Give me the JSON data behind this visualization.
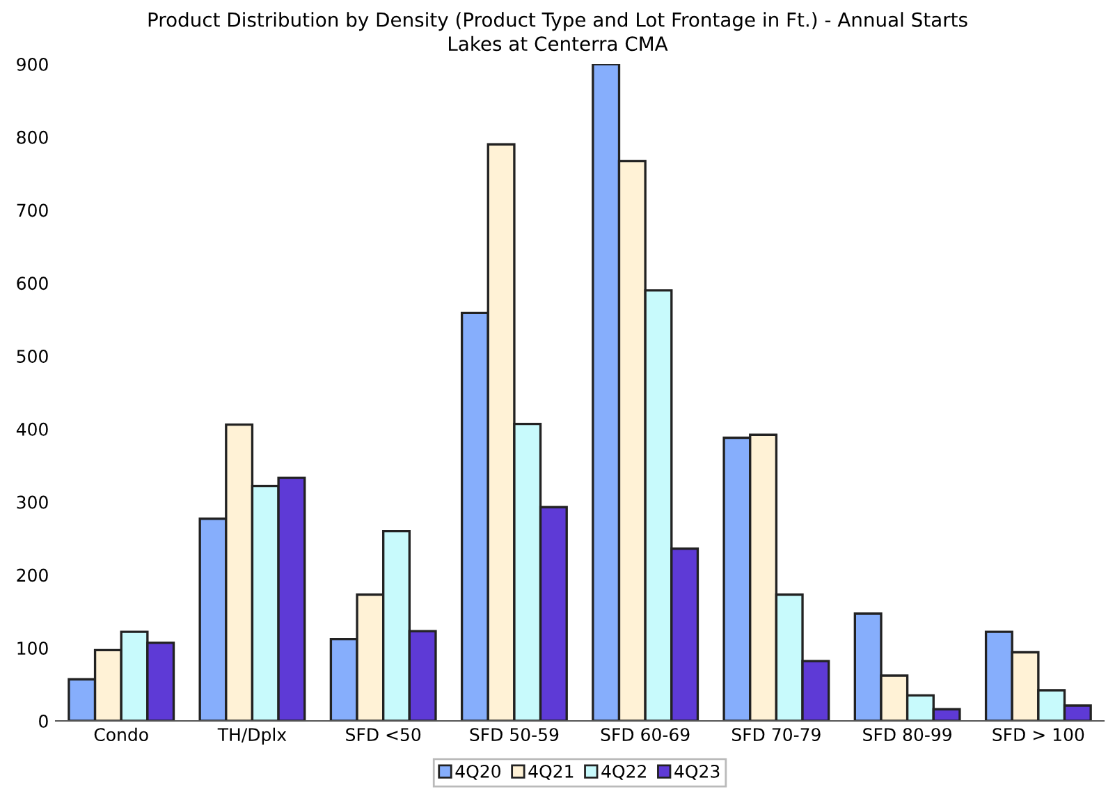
{
  "chart_data": {
    "type": "bar",
    "title": "Product Distribution by Density (Product Type and Lot Frontage in Ft.) - Annual Starts",
    "subtitle": "Lakes at Centerra CMA",
    "categories": [
      "Condo",
      "TH/Dplx",
      "SFD <50",
      "SFD 50-59",
      "SFD 60-69",
      "SFD 70-79",
      "SFD 80-99",
      "SFD > 100"
    ],
    "series": [
      {
        "name": "4Q20",
        "color": "#86aefc",
        "values": [
          57,
          277,
          112,
          559,
          900,
          388,
          147,
          122
        ]
      },
      {
        "name": "4Q21",
        "color": "#fff2d6",
        "values": [
          97,
          406,
          173,
          790,
          767,
          392,
          62,
          94
        ]
      },
      {
        "name": "4Q22",
        "color": "#c8fafc",
        "values": [
          122,
          322,
          260,
          407,
          590,
          173,
          35,
          42
        ]
      },
      {
        "name": "4Q23",
        "color": "#5e3ad6",
        "values": [
          107,
          333,
          123,
          293,
          236,
          82,
          16,
          21
        ]
      }
    ],
    "ylim": [
      0,
      900
    ],
    "yticks": [
      0,
      100,
      200,
      300,
      400,
      500,
      600,
      700,
      800,
      900
    ],
    "grid": false,
    "legend": "bottom"
  }
}
